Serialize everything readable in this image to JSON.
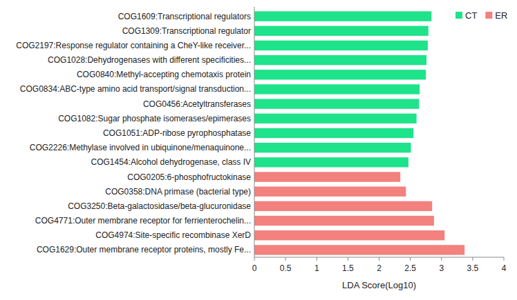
{
  "chart_data": {
    "type": "bar",
    "orientation": "horizontal",
    "stacked": true,
    "x_label": "LDA Score(Log10)",
    "categories": [
      "COG1609:Transcriptional regulators",
      "COG1309:Transcriptional regulator",
      "COG2197:Response regulator containing a CheY-like receiver...",
      "COG1028:Dehydrogenases with different specificities...",
      "COG0840:Methyl-accepting chemotaxis protein",
      "COG0834:ABC-type amino acid transport/signal transduction...",
      "COG0456:Acetyltransferases",
      "COG1082:Sugar phosphate isomerases/epimerases",
      "COG1051:ADP-ribose pyrophosphatase",
      "COG2226:Methylase involved in ubiquinone/menaquinone...",
      "COG1454:Alcohol dehydrogenase, class IV",
      "COG0205:6-phosphofructokinase",
      "COG0358:DNA primase (bacterial type)",
      "COG3250:Beta-galactosidase/beta-glucuronidase",
      "COG4771:Outer membrane receptor for ferrienterochelin...",
      "COG4974:Site-specific recombinase XerD",
      "COG1629:Outer membrane receptor proteins, mostly Fe..."
    ],
    "series": [
      {
        "name": "CT",
        "color": "#1ee38b",
        "values": [
          2.84,
          2.79,
          2.78,
          2.76,
          2.75,
          2.65,
          2.64,
          2.6,
          2.55,
          2.51,
          2.47,
          null,
          null,
          null,
          null,
          null,
          null
        ]
      },
      {
        "name": "ER",
        "color": "#f3817e",
        "values": [
          null,
          null,
          null,
          null,
          null,
          null,
          null,
          null,
          null,
          null,
          null,
          2.34,
          2.43,
          2.85,
          2.88,
          3.05,
          3.37
        ]
      }
    ],
    "xlim": [
      0,
      4
    ],
    "xticks": [
      0,
      0.5,
      1,
      1.5,
      2,
      2.5,
      3,
      3.5,
      4
    ],
    "legend": "top-right",
    "grid": false
  }
}
